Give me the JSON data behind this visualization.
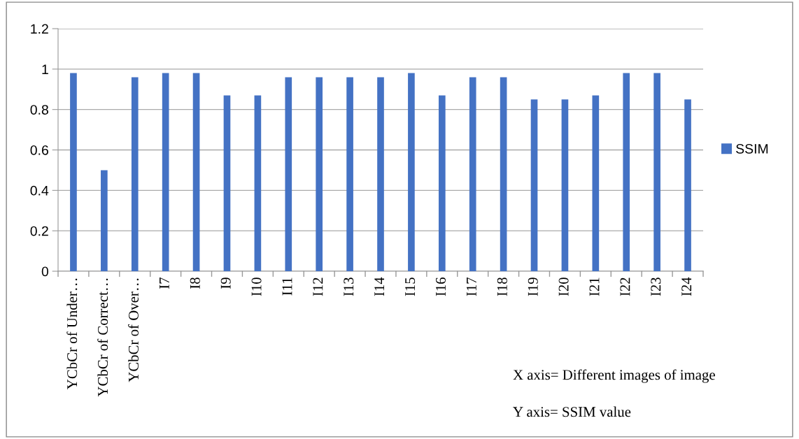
{
  "chart_data": {
    "type": "bar",
    "categories": [
      "YCbCr of Under…",
      "YCbCr of Correct…",
      "YCbCr of Over…",
      "I7",
      "I8",
      "I9",
      "I10",
      "I11",
      "I12",
      "I13",
      "I14",
      "I15",
      "I16",
      "I17",
      "I18",
      "I19",
      "I20",
      "I21",
      "I22",
      "I23",
      "I24"
    ],
    "series": [
      {
        "name": "SSIM",
        "color": "#4472c4",
        "values": [
          0.98,
          0.5,
          0.96,
          0.98,
          0.98,
          0.87,
          0.87,
          0.96,
          0.96,
          0.96,
          0.96,
          0.98,
          0.87,
          0.96,
          0.96,
          0.85,
          0.85,
          0.87,
          0.98,
          0.98,
          0.85
        ]
      }
    ],
    "ylim": [
      0,
      1.2
    ],
    "yticks": [
      0,
      0.2,
      0.4,
      0.6,
      0.8,
      1,
      1.2
    ],
    "grid": "y",
    "legend": "right",
    "annotations": [
      "X axis= Different images of image",
      "Y axis= SSIM value"
    ]
  }
}
